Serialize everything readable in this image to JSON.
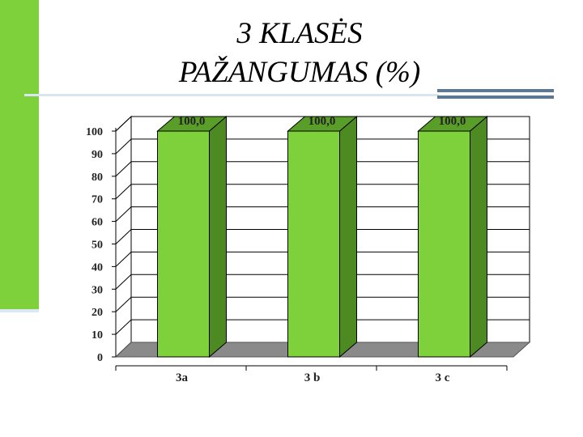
{
  "slide": {
    "title_line1": "3 KLASĖS",
    "title_line2": "PAŽANGUMAS (%)"
  },
  "colors": {
    "side_bar": "#7ed13a",
    "bar_front": "#7ed13a",
    "bar_side": "#4e8a22",
    "bar_top": "#5a9e2a",
    "floor": "#8a8a8a",
    "accent": "#5d7895"
  },
  "chart_data": {
    "type": "bar",
    "title": "",
    "xlabel": "",
    "ylabel": "",
    "categories": [
      "3a",
      "3 b",
      "3 c"
    ],
    "series": [
      {
        "values": [
          100.0,
          100.0,
          100.0
        ],
        "labels": [
          "100,0",
          "100,0",
          "100,0"
        ]
      }
    ],
    "ylim": [
      0,
      100
    ],
    "yticks": [
      0,
      10,
      20,
      30,
      40,
      50,
      60,
      70,
      80,
      90,
      100
    ],
    "grid": true,
    "legend": "none",
    "style": "3d-columns"
  }
}
